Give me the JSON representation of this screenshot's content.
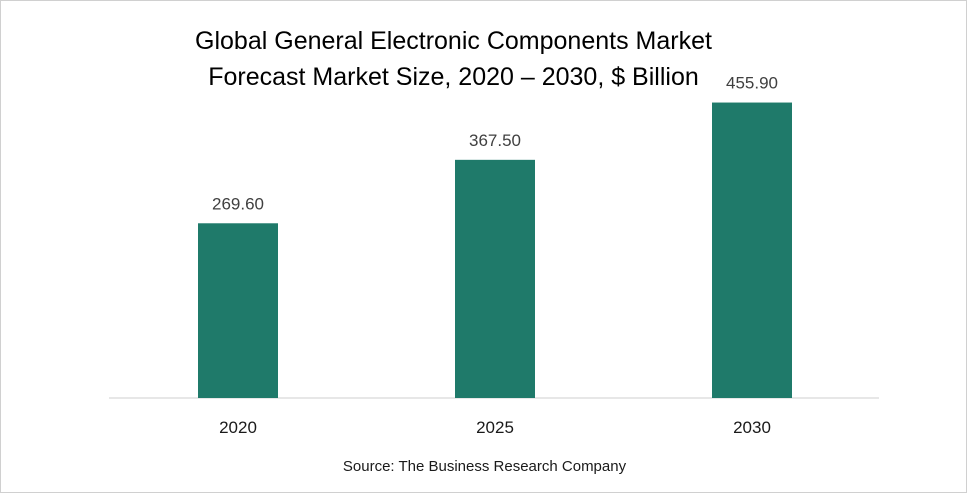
{
  "chart_data": {
    "type": "bar",
    "title": "Global General Electronic Components Market",
    "subtitle": "Forecast Market Size, 2020 – 2030, $ Billion",
    "categories": [
      "2020",
      "2025",
      "2030"
    ],
    "values": [
      269.6,
      367.5,
      455.9
    ],
    "value_labels": [
      "269.60",
      "367.50",
      "455.90"
    ],
    "xlabel": "",
    "ylabel": "",
    "ylim": [
      0,
      520
    ],
    "grid": false,
    "legend": "none",
    "bar_color": "#1f7a6a",
    "source": "Source: The Business Research Company"
  }
}
